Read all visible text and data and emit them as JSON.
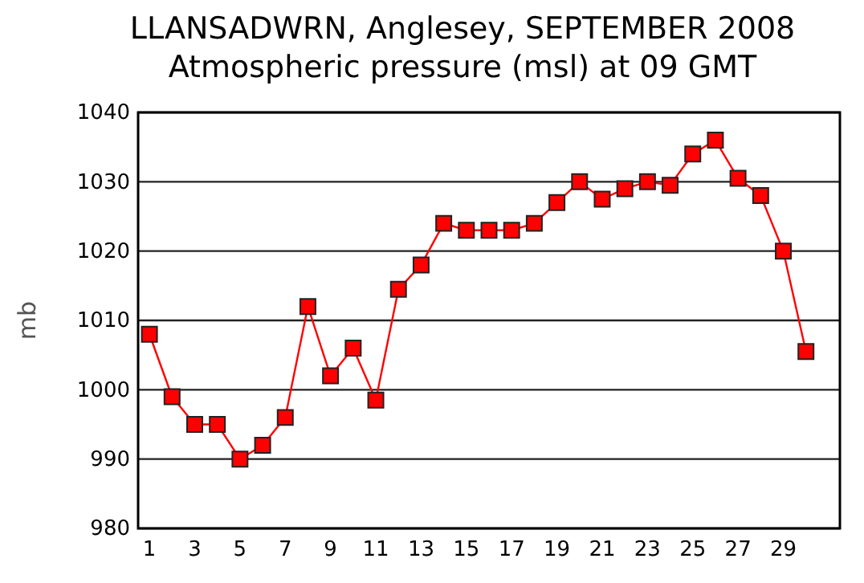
{
  "chart_data": {
    "type": "line",
    "title": "LLANSADWRN, Anglesey,  SEPTEMBER 2008",
    "subtitle": "Atmospheric pressure  (msl) at 09 GMT",
    "ylabel": "mb",
    "x": [
      1,
      2,
      3,
      4,
      5,
      6,
      7,
      8,
      9,
      10,
      11,
      12,
      13,
      14,
      15,
      16,
      17,
      18,
      19,
      20,
      21,
      22,
      23,
      24,
      25,
      26,
      27,
      28,
      29,
      30
    ],
    "series": [
      {
        "color": "#ff0000",
        "values": [
          1008,
          999,
          995,
          995,
          990,
          992,
          996,
          1012,
          1002,
          1006,
          998.5,
          1014.5,
          1018,
          1024,
          1023,
          1023,
          1023,
          1024,
          1027,
          1030,
          1027.5,
          1029,
          1030,
          1029.5,
          1034,
          1036,
          1030.5,
          1028,
          1020,
          1005.5
        ]
      }
    ],
    "xlim": [
      0.5,
      31.5
    ],
    "xticks": [
      1,
      3,
      5,
      7,
      9,
      11,
      13,
      15,
      17,
      19,
      21,
      23,
      25,
      27,
      29
    ],
    "ylim": [
      980,
      1040
    ],
    "yticks": [
      980,
      990,
      1000,
      1010,
      1020,
      1030,
      1040
    ],
    "grid": "y",
    "marker": "square",
    "line_style": "solid"
  }
}
